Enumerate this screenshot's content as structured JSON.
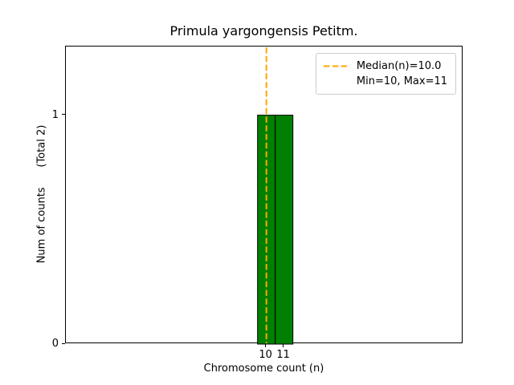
{
  "chart_data": {
    "type": "histogram",
    "title": "Primula yargongensis Petitm.",
    "xlabel": "Chromosome count (n)",
    "ylabel": "Num of counts      (Total 2)",
    "total_counts": 2,
    "categories": [
      10,
      11
    ],
    "values": [
      1,
      1
    ],
    "bar_width": 1.0,
    "bar_color": "#008000",
    "bar_edge_color": "#000000",
    "median_line": {
      "x": 10.0,
      "color": "#FFA500",
      "style": "dashed",
      "width": 2
    },
    "stats": {
      "median": 10.0,
      "min": 10,
      "max": 11
    },
    "legend": {
      "position": "upper right",
      "entries": [
        "Median(n)=10.0",
        "Min=10, Max=11"
      ]
    },
    "xlim": [
      -1.35,
      21.15
    ],
    "ylim": [
      0,
      1.3
    ],
    "xticks": [
      10,
      11
    ],
    "xtick_labels": [
      "10",
      "11"
    ],
    "yticks": [
      0,
      1
    ],
    "ytick_labels": [
      "0",
      "1"
    ],
    "grid": false
  }
}
